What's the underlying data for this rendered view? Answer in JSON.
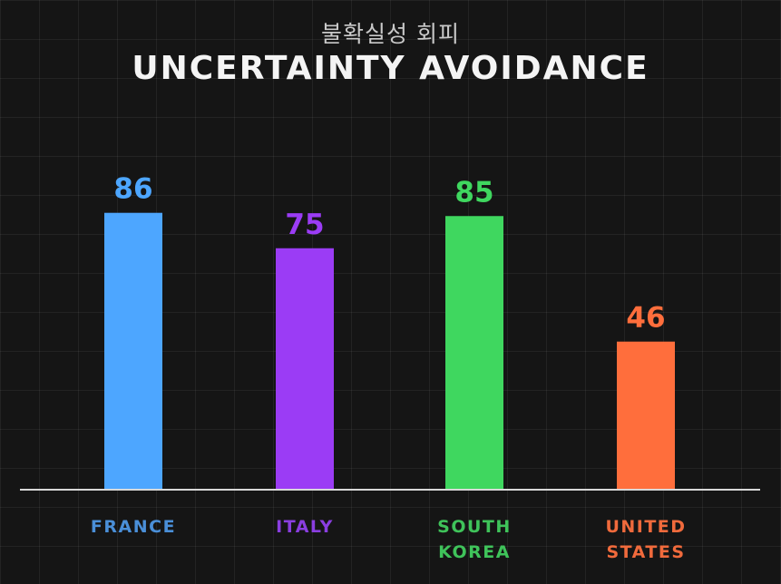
{
  "header": {
    "subtitle": "불확실성 회피",
    "title": "UNCERTAINTY AVOIDANCE"
  },
  "chart_data": {
    "type": "bar",
    "categories": [
      "FRANCE",
      "ITALY",
      "SOUTH KOREA",
      "UNITED STATES"
    ],
    "category_lines": [
      [
        "FRANCE"
      ],
      [
        "ITALY"
      ],
      [
        "SOUTH",
        "KOREA"
      ],
      [
        "UNITED",
        "STATES"
      ]
    ],
    "values": [
      86,
      75,
      85,
      46
    ],
    "colors": [
      "#4da6ff",
      "#9b3cf5",
      "#3fd75f",
      "#ff6e3c"
    ],
    "label_colors": [
      "#4a8fd8",
      "#8a3ee0",
      "#3fc35a",
      "#f06a3c"
    ],
    "title": "UNCERTAINTY AVOIDANCE",
    "subtitle": "불확실성 회피",
    "ylim": [
      0,
      100
    ],
    "grid": true,
    "axis_color": "#d8d8d8"
  }
}
